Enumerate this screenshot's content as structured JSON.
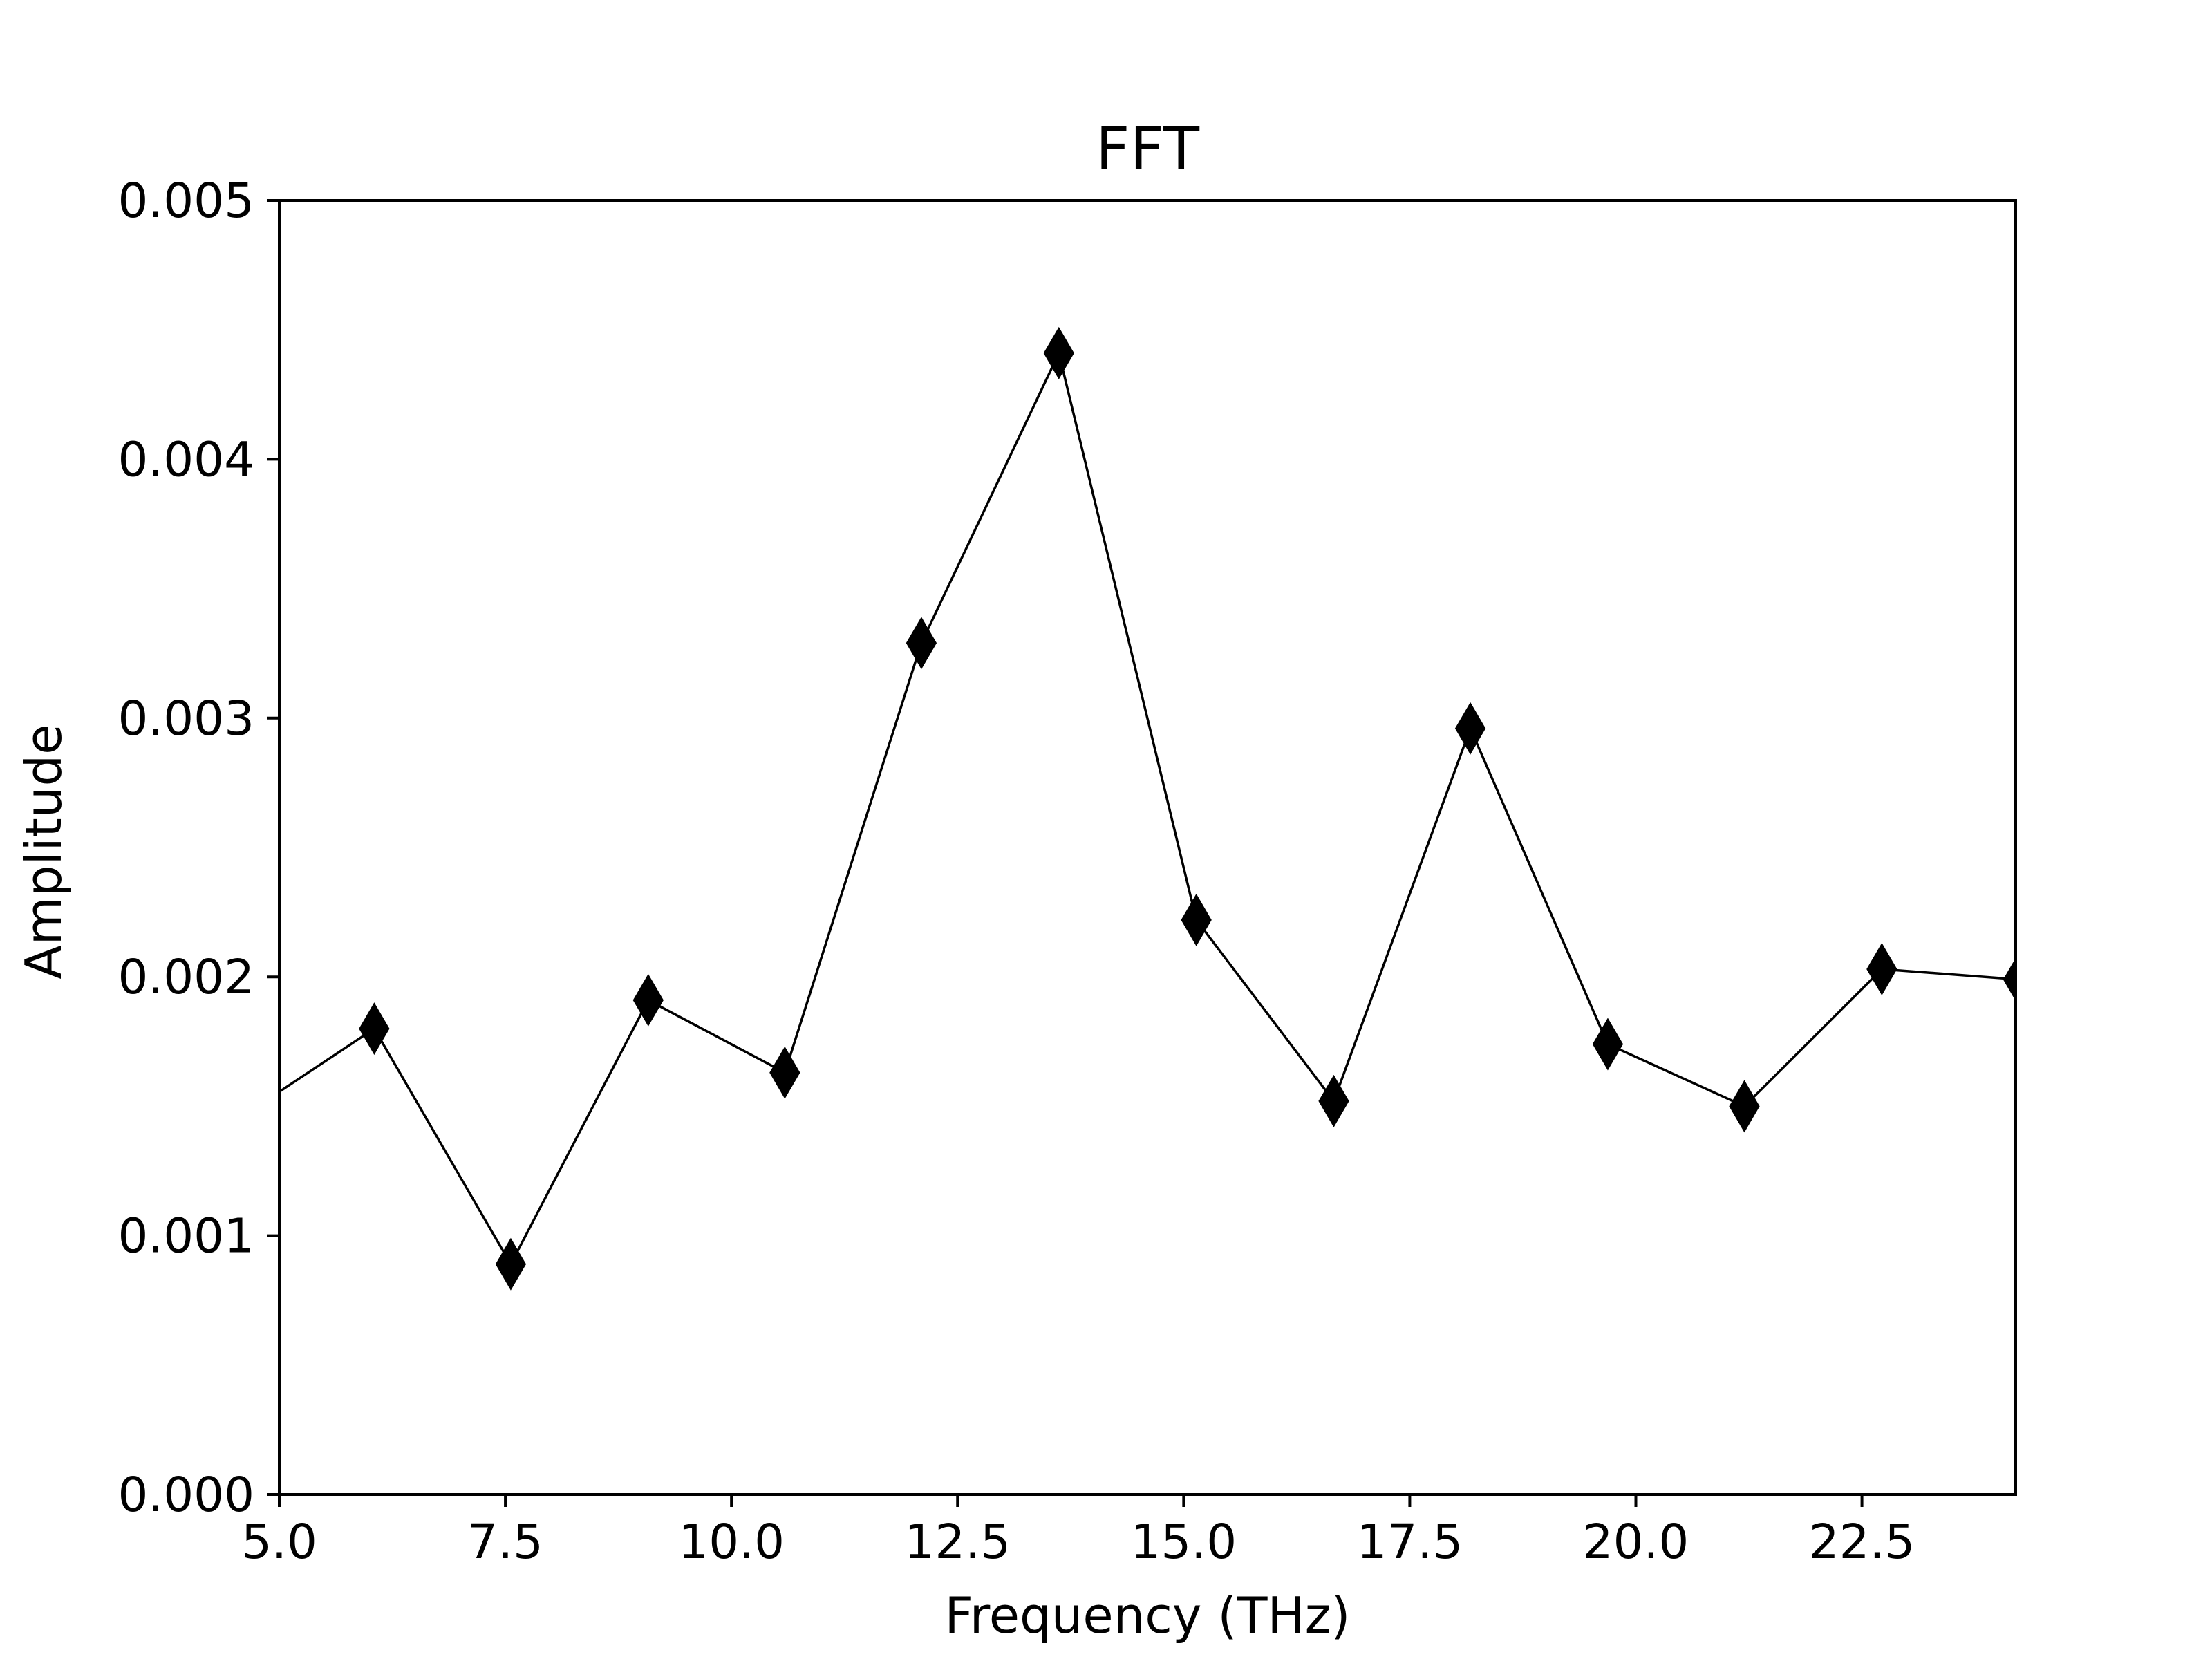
{
  "chart_data": {
    "type": "line",
    "title": "FFT",
    "xlabel": "Frequency (THz)",
    "ylabel": "Amplitude",
    "xlim": [
      5.0,
      24.2
    ],
    "ylim": [
      0.0,
      0.005
    ],
    "x_ticks": [
      "5.0",
      "7.5",
      "10.0",
      "12.5",
      "15.0",
      "17.5",
      "20.0",
      "22.5"
    ],
    "y_ticks": [
      "0.000",
      "0.001",
      "0.002",
      "0.003",
      "0.004",
      "0.005"
    ],
    "grid": false,
    "marker": "diamond",
    "line_color": "#000000",
    "marker_color": "#000000",
    "series": [
      {
        "x": [
          4.5,
          6.05,
          7.56,
          9.08,
          10.59,
          12.1,
          13.62,
          15.14,
          16.66,
          18.17,
          19.69,
          21.2,
          22.72,
          24.23
        ],
        "y": [
          0.00144,
          0.0018,
          0.00089,
          0.00191,
          0.00163,
          0.00329,
          0.00441,
          0.00222,
          0.00152,
          0.00296,
          0.00174,
          0.0015,
          0.00203,
          0.00199
        ]
      }
    ]
  }
}
